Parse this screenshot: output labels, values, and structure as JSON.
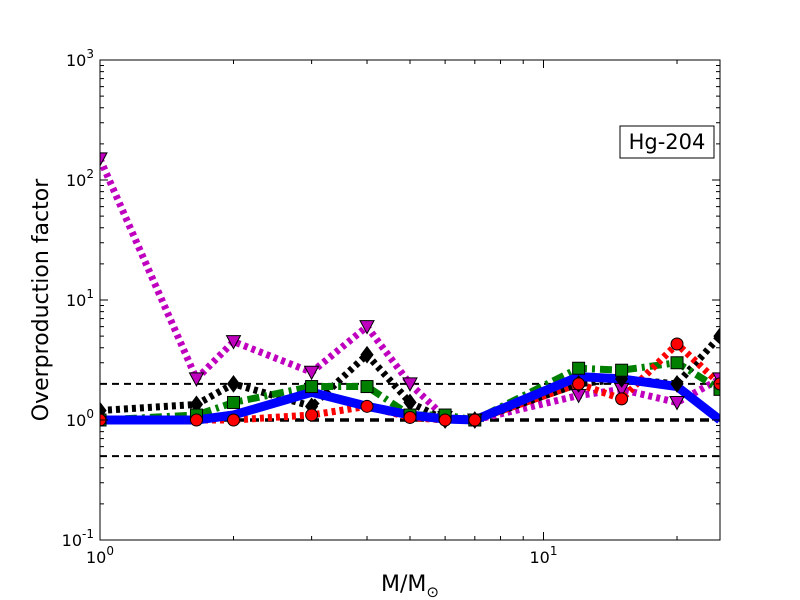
{
  "chart_data": {
    "type": "line",
    "xlabel": "M/M",
    "xlabel_subscript": "⊙",
    "ylabel": "Overproduction factor",
    "x_scale": "log",
    "y_scale": "log",
    "xlim": [
      1,
      25
    ],
    "ylim": [
      0.1,
      1000
    ],
    "x_ticks": [
      {
        "value": 1,
        "base": "10",
        "exp": "0"
      },
      {
        "value": 10,
        "base": "10",
        "exp": "1"
      }
    ],
    "y_ticks": [
      {
        "value": 0.1,
        "base": "10",
        "exp": "-1"
      },
      {
        "value": 1,
        "base": "10",
        "exp": "0"
      },
      {
        "value": 10,
        "base": "10",
        "exp": "1"
      },
      {
        "value": 100,
        "base": "10",
        "exp": "2"
      },
      {
        "value": 1000,
        "base": "10",
        "exp": "3"
      }
    ],
    "annotation": "Hg-204",
    "reference_lines": [
      {
        "y": 2,
        "color": "#000000",
        "style": "dashed"
      },
      {
        "y": 1,
        "color": "#000000",
        "style": "dashed-thick"
      },
      {
        "y": 0.5,
        "color": "#000000",
        "style": "dashed"
      }
    ],
    "series": [
      {
        "color": "#0000ff",
        "style": "solid",
        "marker": "none",
        "x": [
          1,
          1.65,
          2,
          3,
          4,
          5,
          6,
          7,
          12,
          15,
          20,
          25
        ],
        "y": [
          1.0,
          1.0,
          1.1,
          1.7,
          1.3,
          1.1,
          1.02,
          1.0,
          2.3,
          2.2,
          1.9,
          1.0
        ]
      },
      {
        "color": "#ff0000",
        "style": "dotted",
        "marker": "circle",
        "x": [
          1,
          1.65,
          2,
          3,
          4,
          5,
          6,
          7,
          12,
          15,
          20,
          25
        ],
        "y": [
          1.0,
          1.0,
          1.0,
          1.1,
          1.3,
          1.05,
          1.0,
          1.0,
          2.0,
          1.5,
          4.3,
          2.0
        ]
      },
      {
        "color": "#008000",
        "style": "dashdot",
        "marker": "square",
        "x": [
          1,
          1.65,
          2,
          3,
          4,
          5,
          6,
          7,
          12,
          15,
          20,
          25
        ],
        "y": [
          1.0,
          1.1,
          1.4,
          1.9,
          1.9,
          1.1,
          1.1,
          1.0,
          2.7,
          2.6,
          3.0,
          1.8
        ]
      },
      {
        "color": "#000000",
        "style": "dotted",
        "marker": "diamond",
        "x": [
          1,
          1.65,
          2,
          3,
          4,
          5,
          6,
          7,
          12,
          15,
          20,
          25
        ],
        "y": [
          1.2,
          1.35,
          2.0,
          1.3,
          3.5,
          1.4,
          1.0,
          1.0,
          2.0,
          2.2,
          2.0,
          5.0
        ]
      },
      {
        "color": "#bf00bf",
        "style": "dotted",
        "marker": "triangle-down",
        "x": [
          1,
          1.65,
          2,
          3,
          4,
          5,
          6,
          7,
          12,
          15,
          20,
          25
        ],
        "y": [
          150,
          2.2,
          4.5,
          2.5,
          6.0,
          2.0,
          1.05,
          1.0,
          1.6,
          1.8,
          1.4,
          2.2
        ]
      }
    ]
  }
}
